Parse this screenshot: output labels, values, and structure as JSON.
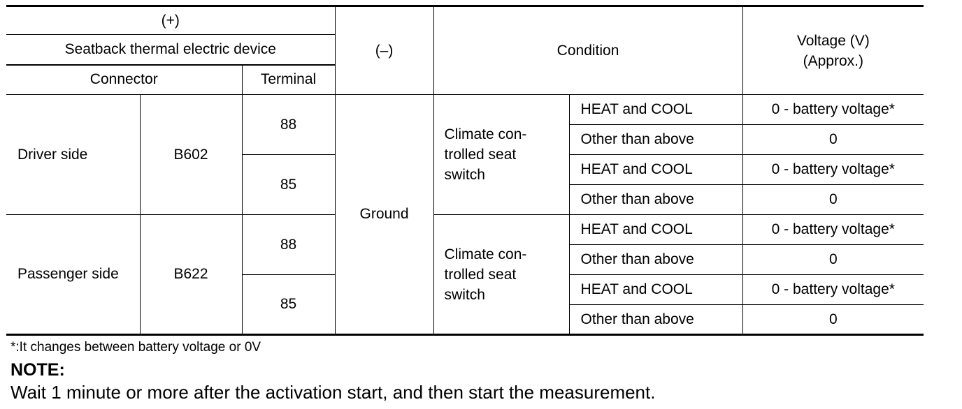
{
  "table": {
    "header": {
      "plus": "(+)",
      "device": "Seatback thermal electric device",
      "minus": "(–)",
      "condition": "Condition",
      "voltage_line1": "Voltage (V)",
      "voltage_line2": "(Approx.)",
      "connector": "Connector",
      "terminal": "Terminal"
    },
    "ground": "Ground",
    "switch_lines": [
      "Climate con-",
      "trolled seat",
      "switch"
    ],
    "groups": [
      {
        "side": "Driver side",
        "connector": "B602",
        "terminals": [
          {
            "terminal": "88",
            "rows": [
              {
                "condition": "HEAT and COOL",
                "voltage": "0 - battery voltage*"
              },
              {
                "condition": "Other than above",
                "voltage": "0"
              }
            ]
          },
          {
            "terminal": "85",
            "rows": [
              {
                "condition": "HEAT and COOL",
                "voltage": "0 - battery voltage*"
              },
              {
                "condition": "Other than above",
                "voltage": "0"
              }
            ]
          }
        ]
      },
      {
        "side": "Passenger side",
        "connector": "B622",
        "terminals": [
          {
            "terminal": "88",
            "rows": [
              {
                "condition": "HEAT and COOL",
                "voltage": "0 - battery voltage*"
              },
              {
                "condition": "Other than above",
                "voltage": "0"
              }
            ]
          },
          {
            "terminal": "85",
            "rows": [
              {
                "condition": "HEAT and COOL",
                "voltage": "0 - battery voltage*"
              },
              {
                "condition": "Other than above",
                "voltage": "0"
              }
            ]
          }
        ]
      }
    ]
  },
  "footnote": "*:It changes between battery voltage or 0V",
  "note": {
    "title": "NOTE:",
    "text": "Wait 1 minute or more after the activation start, and then start the measurement."
  }
}
